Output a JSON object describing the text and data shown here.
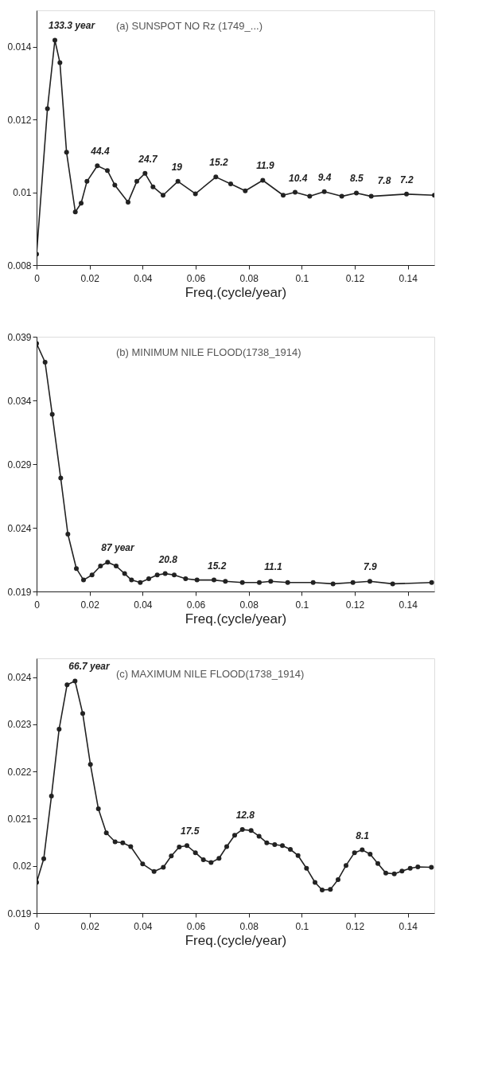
{
  "chart_data": [
    {
      "type": "line",
      "title": "(a) SUNSPOT NO Rz (1749_...)",
      "xlabel": "Freq.(cycle/year)",
      "marker": "circle",
      "line_style": "solid",
      "xlim": [
        0,
        0.15
      ],
      "ylim": [
        0.008,
        0.015
      ],
      "xticks": [
        0,
        0.02,
        0.04,
        0.06,
        0.08,
        0.1,
        0.12,
        0.14
      ],
      "yticks": [
        0.008,
        0.01,
        0.012,
        0.014
      ],
      "x": [
        0,
        0.0041,
        0.0069,
        0.0088,
        0.0113,
        0.0146,
        0.0168,
        0.019,
        0.0229,
        0.0267,
        0.0295,
        0.0345,
        0.0378,
        0.0409,
        0.0439,
        0.0477,
        0.0533,
        0.0599,
        0.0676,
        0.0732,
        0.0787,
        0.0853,
        0.093,
        0.0975,
        0.103,
        0.1085,
        0.1151,
        0.1206,
        0.1262,
        0.1395,
        0.15
      ],
      "series": [
        {
          "color": "#222222",
          "values": [
            0.0083,
            0.0123,
            0.01418,
            0.01356,
            0.0111,
            0.00946,
            0.0097,
            0.0103,
            0.01073,
            0.0106,
            0.0102,
            0.00973,
            0.0103,
            0.01052,
            0.01015,
            0.00992,
            0.0103,
            0.00996,
            0.01042,
            0.01023,
            0.01004,
            0.01033,
            0.00992,
            0.01,
            0.00989,
            0.01002,
            0.00989,
            0.00998,
            0.00989,
            0.00995,
            0.00992
          ]
        }
      ],
      "annotations": [
        {
          "text": "133.3 year",
          "x": 0.0069,
          "y": 0.01418
        },
        {
          "text": "44.4",
          "x": 0.0229,
          "y": 0.01073
        },
        {
          "text": "24.7",
          "x": 0.0409,
          "y": 0.01052
        },
        {
          "text": "19",
          "x": 0.0533,
          "y": 0.0103
        },
        {
          "text": "15.2",
          "x": 0.0676,
          "y": 0.01042
        },
        {
          "text": "11.9",
          "x": 0.0853,
          "y": 0.01033
        },
        {
          "text": "10.4",
          "x": 0.0975,
          "y": 0.01
        },
        {
          "text": "9.4",
          "x": 0.1085,
          "y": 0.01002
        },
        {
          "text": "8.5",
          "x": 0.1206,
          "y": 0.00998
        },
        {
          "text": "7.8",
          "x": 0.131,
          "y": 0.00993
        },
        {
          "text": "7.2",
          "x": 0.1395,
          "y": 0.00995
        }
      ]
    },
    {
      "type": "line",
      "title": "(b) MINIMUM  NILE FLOOD(1738_1914)",
      "xlabel": "Freq.(cycle/year)",
      "marker": "circle",
      "line_style": "solid",
      "xlim": [
        0,
        0.15
      ],
      "ylim": [
        0.019,
        0.039
      ],
      "xticks": [
        0,
        0.02,
        0.04,
        0.06,
        0.08,
        0.1,
        0.12,
        0.14
      ],
      "yticks": [
        0.019,
        0.024,
        0.029,
        0.034,
        0.039
      ],
      "x": [
        0,
        0.0032,
        0.0059,
        0.0091,
        0.0118,
        0.015,
        0.0177,
        0.0209,
        0.0241,
        0.0268,
        0.03,
        0.0332,
        0.0358,
        0.0391,
        0.0423,
        0.0455,
        0.0485,
        0.0519,
        0.0562,
        0.0605,
        0.0669,
        0.0712,
        0.0776,
        0.084,
        0.0883,
        0.0947,
        0.1043,
        0.1118,
        0.1193,
        0.1257,
        0.1343,
        0.149
      ],
      "series": [
        {
          "color": "#222222",
          "values": [
            0.03847,
            0.037,
            0.0329,
            0.0279,
            0.0235,
            0.0208,
            0.0199,
            0.0203,
            0.021,
            0.0213,
            0.021,
            0.0204,
            0.0199,
            0.0197,
            0.02,
            0.0203,
            0.0204,
            0.0203,
            0.02,
            0.0199,
            0.0199,
            0.0198,
            0.0197,
            0.0197,
            0.0198,
            0.0197,
            0.0197,
            0.0196,
            0.0197,
            0.0198,
            0.0196,
            0.0197
          ]
        }
      ],
      "annotations": [
        {
          "text": "87 year",
          "x": 0.0268,
          "y": 0.0213
        },
        {
          "text": "20.8",
          "x": 0.0485,
          "y": 0.0204
        },
        {
          "text": "15.2",
          "x": 0.0669,
          "y": 0.0199
        },
        {
          "text": "11.1",
          "x": 0.0883,
          "y": 0.0198
        },
        {
          "text": "7.9",
          "x": 0.1257,
          "y": 0.0198
        }
      ]
    },
    {
      "type": "line",
      "title": "(c) MAXIMUM  NILE FLOOD(1738_1914)",
      "xlabel": "Freq.(cycle/year)",
      "marker": "circle",
      "line_style": "solid",
      "xlim": [
        0,
        0.15
      ],
      "ylim": [
        0.019,
        0.0244
      ],
      "xticks": [
        0,
        0.02,
        0.04,
        0.06,
        0.08,
        0.1,
        0.12,
        0.14
      ],
      "yticks": [
        0.019,
        0.02,
        0.021,
        0.022,
        0.023,
        0.024
      ],
      "x": [
        0,
        0.0027,
        0.0056,
        0.0085,
        0.0115,
        0.0145,
        0.0174,
        0.0203,
        0.0233,
        0.0263,
        0.0296,
        0.0325,
        0.0355,
        0.04,
        0.0443,
        0.0478,
        0.0508,
        0.0538,
        0.0567,
        0.0599,
        0.0629,
        0.0658,
        0.0688,
        0.0717,
        0.0747,
        0.0776,
        0.0809,
        0.0839,
        0.0868,
        0.0898,
        0.0927,
        0.0957,
        0.0986,
        0.1018,
        0.105,
        0.1077,
        0.1108,
        0.1137,
        0.1167,
        0.1199,
        0.1228,
        0.1258,
        0.1287,
        0.1317,
        0.1349,
        0.1378,
        0.1409,
        0.1438,
        0.1489
      ],
      "series": [
        {
          "color": "#222222",
          "values": [
            0.01965,
            0.02015,
            0.02148,
            0.0229,
            0.02384,
            0.02392,
            0.02323,
            0.02215,
            0.02121,
            0.0207,
            0.02051,
            0.02049,
            0.02041,
            0.02004,
            0.01988,
            0.01997,
            0.02021,
            0.0204,
            0.02043,
            0.02028,
            0.02013,
            0.02007,
            0.02016,
            0.02041,
            0.02065,
            0.02077,
            0.02075,
            0.02063,
            0.02049,
            0.02045,
            0.02043,
            0.02035,
            0.02022,
            0.01995,
            0.01965,
            0.01949,
            0.0195,
            0.01971,
            0.02001,
            0.02028,
            0.02034,
            0.02025,
            0.02005,
            0.01985,
            0.01983,
            0.01989,
            0.01995,
            0.01998,
            0.01997
          ]
        }
      ],
      "annotations": [
        {
          "text": "66.7 year",
          "x": 0.0145,
          "y": 0.02392
        },
        {
          "text": "17.5",
          "x": 0.0567,
          "y": 0.02043
        },
        {
          "text": "12.8",
          "x": 0.0776,
          "y": 0.02077
        },
        {
          "text": "8.1",
          "x": 0.1228,
          "y": 0.02034
        }
      ]
    }
  ]
}
